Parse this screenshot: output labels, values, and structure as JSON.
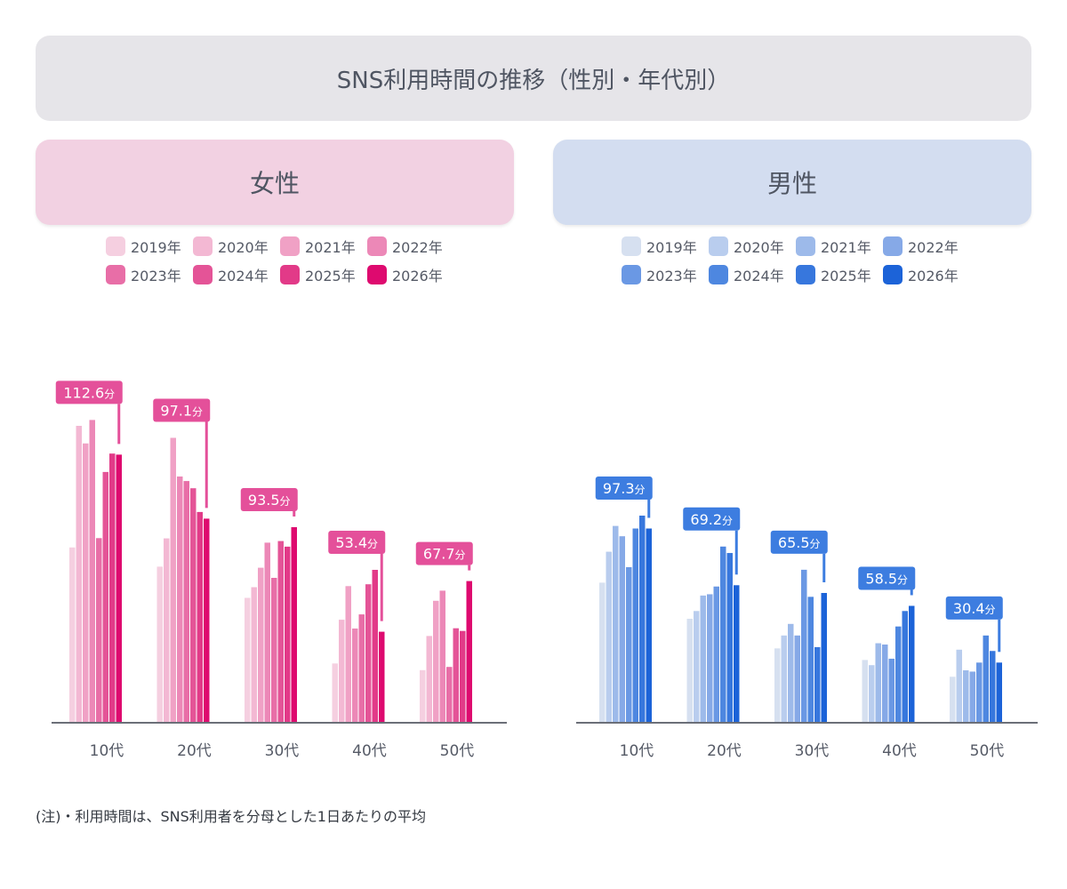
{
  "title": "SNS利用時間の推移（性別・年代別）",
  "note": "(注)・利用時間は、SNS利用者を分母とした1日あたりの平均",
  "chart_data": [
    {
      "type": "bar",
      "panel_title": "女性",
      "categories": [
        "10代",
        "20代",
        "30代",
        "40代",
        "50代"
      ],
      "series": [
        {
          "name": "2019年",
          "color": "#f5cfe0",
          "values": [
            65.4,
            58.2,
            46.5,
            21.9,
            19.4
          ]
        },
        {
          "name": "2020年",
          "color": "#f3b8d3",
          "values": [
            111.0,
            68.8,
            50.5,
            38.3,
            32.2
          ]
        },
        {
          "name": "2021年",
          "color": "#f0a1c5",
          "values": [
            104.4,
            106.5,
            57.8,
            50.9,
            45.4
          ]
        },
        {
          "name": "2022年",
          "color": "#ec88b7",
          "values": [
            113.2,
            92.0,
            67.2,
            35.0,
            49.2
          ]
        },
        {
          "name": "2023年",
          "color": "#e86ea7",
          "values": [
            68.9,
            90.3,
            54.0,
            40.3,
            20.6
          ]
        },
        {
          "name": "2024年",
          "color": "#e45497",
          "values": [
            93.7,
            87.6,
            67.8,
            51.6,
            35.1
          ]
        },
        {
          "name": "2025年",
          "color": "#e23a88",
          "values": [
            100.6,
            78.7,
            65.7,
            57.0,
            34.1
          ]
        },
        {
          "name": "2026年",
          "color": "#de0a6f",
          "values": [
            100.2,
            76.2,
            73.0,
            33.8,
            52.8
          ]
        }
      ],
      "callouts": {
        "labels": [
          "112.6",
          "97.1",
          "93.5",
          "53.4",
          "67.7"
        ],
        "unit": "分",
        "color": "#e4509a"
      },
      "ylim": [
        0,
        130
      ]
    },
    {
      "type": "bar",
      "panel_title": "男性",
      "categories": [
        "10代",
        "20代",
        "30代",
        "40代",
        "50代"
      ],
      "series": [
        {
          "name": "2019年",
          "color": "#d6e0f0",
          "values": [
            54.0,
            40.0,
            28.5,
            24.0,
            17.5
          ]
        },
        {
          "name": "2020年",
          "color": "#b9cdee",
          "values": [
            66.0,
            43.0,
            33.5,
            22.0,
            28.0
          ]
        },
        {
          "name": "2021年",
          "color": "#9dbaea",
          "values": [
            76.0,
            49.0,
            38.0,
            30.5,
            20.0
          ]
        },
        {
          "name": "2022年",
          "color": "#86a9e7",
          "values": [
            72.0,
            49.5,
            33.5,
            30.0,
            19.5
          ]
        },
        {
          "name": "2023年",
          "color": "#6a98e4",
          "values": [
            60.0,
            52.5,
            59.0,
            24.5,
            23.0
          ]
        },
        {
          "name": "2024年",
          "color": "#4e87e0",
          "values": [
            75.0,
            68.0,
            48.5,
            37.0,
            33.5
          ]
        },
        {
          "name": "2025年",
          "color": "#3777dd",
          "values": [
            80.0,
            65.5,
            29.0,
            43.0,
            27.5
          ]
        },
        {
          "name": "2026年",
          "color": "#1c63d8",
          "values": [
            75.0,
            53.0,
            50.0,
            45.0,
            23.0
          ]
        }
      ],
      "callouts": {
        "labels": [
          "97.3",
          "69.2",
          "65.5",
          "58.5",
          "30.4"
        ],
        "unit": "分",
        "color": "#3d7de0"
      },
      "ylim": [
        0,
        100
      ]
    }
  ]
}
